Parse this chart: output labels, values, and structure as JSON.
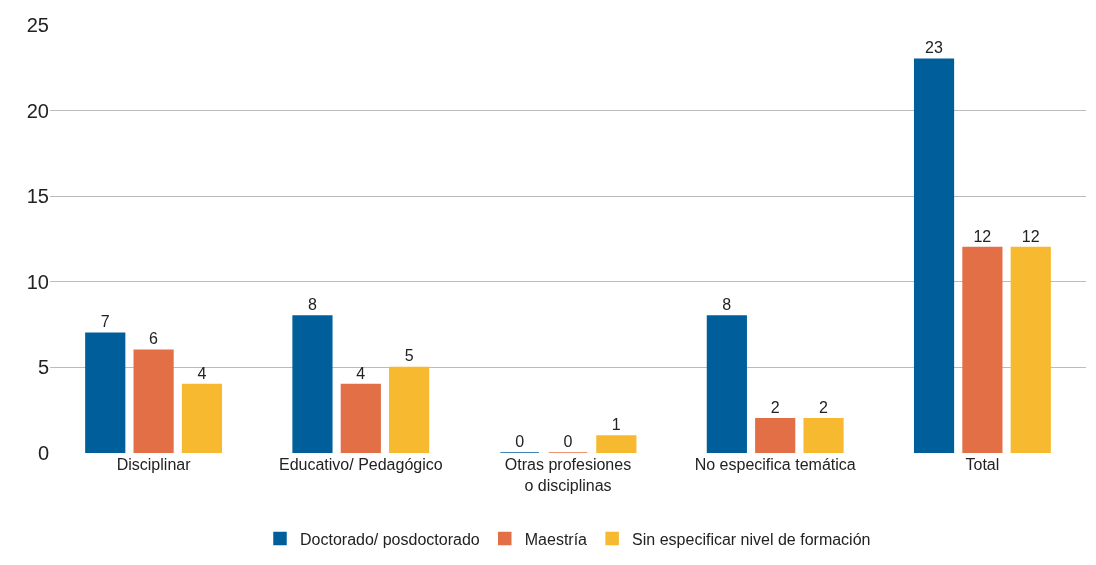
{
  "chart_data": {
    "type": "bar",
    "categories": [
      "Disciplinar",
      "Educativo/ Pedagógico",
      "Otras profesiones\no disciplinas",
      "No especifica temática",
      "Total"
    ],
    "series": [
      {
        "name": "Doctorado/ posdoctorado",
        "color": "#005f9a",
        "values": [
          7,
          8,
          0,
          8,
          23
        ]
      },
      {
        "name": "Maestría",
        "color": "#e36f47",
        "values": [
          6,
          4,
          0,
          2,
          12
        ]
      },
      {
        "name": "Sin especificar nivel de formación",
        "color": "#f7b92f",
        "values": [
          4,
          5,
          1,
          2,
          12
        ]
      }
    ],
    "ylim": [
      0,
      25
    ],
    "yticks": [
      0,
      5,
      10,
      15,
      20,
      25
    ],
    "grid": "y",
    "legend": "bottom",
    "data_labels": true
  }
}
